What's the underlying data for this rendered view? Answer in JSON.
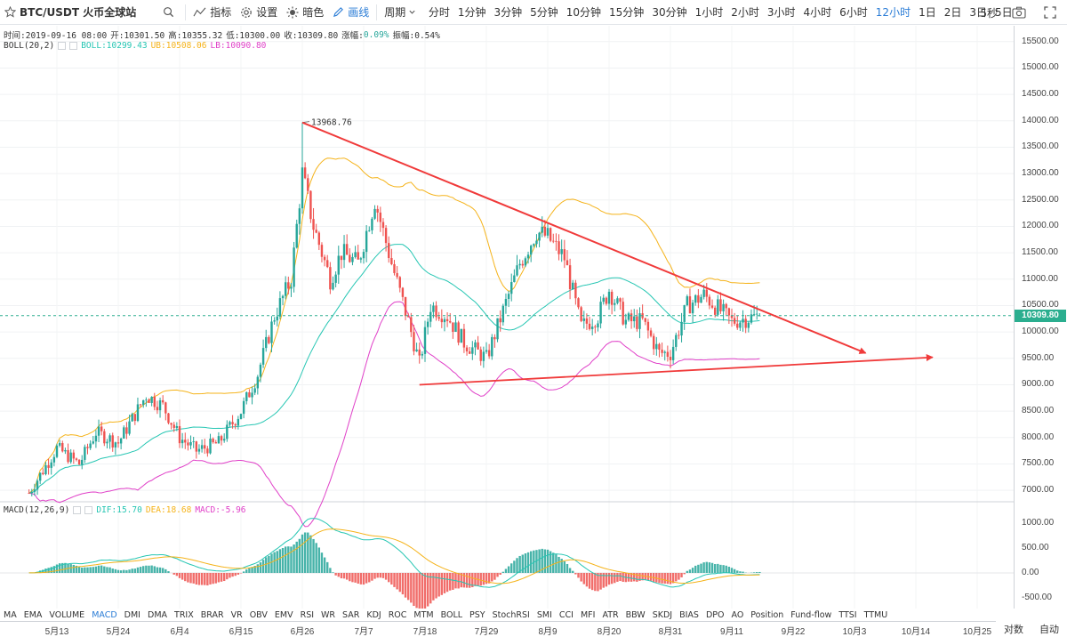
{
  "toolbar": {
    "symbol": "BTC/USDT 火币全球站",
    "indicators_label": "指标",
    "settings_label": "设置",
    "theme_label": "暗色",
    "draw_label": "画线",
    "period_label": "周期",
    "intervals": [
      "分时",
      "1分钟",
      "3分钟",
      "5分钟",
      "10分钟",
      "15分钟",
      "30分钟",
      "1小时",
      "2小时",
      "3小时",
      "4小时",
      "6小时",
      "12小时",
      "1日",
      "2日",
      "3日",
      "5日"
    ],
    "active_interval": "12小时",
    "refresh_label": "5秒",
    "accent_color": "#2a7cd6"
  },
  "legend": {
    "ohlc": {
      "time": "时间:2019-09-16 08:00",
      "open": "开:10301.50",
      "high": "高:10355.32",
      "low": "低:10300.00",
      "close": "收:10309.80",
      "change": "涨幅:",
      "change_value": "0.09%",
      "amplitude": "振幅:0.54%"
    },
    "boll": {
      "name": "BOLL(20,2)",
      "mid": "BOLL:10299.43",
      "ub": "UB:10508.06",
      "lb": "LB:10090.80"
    },
    "macd": {
      "name": "MACD(12,26,9)",
      "dif": "DIF:15.70",
      "dea": "DEA:18.68",
      "macd": "MACD:-5.96"
    }
  },
  "colors": {
    "up": "#26a69a",
    "down": "#ef5350",
    "boll_mid": "#26c6b3",
    "boll_ub": "#f5b31a",
    "boll_lb": "#e040c8",
    "trend": "#f03a3a",
    "current_price": "#2bae8f"
  },
  "price_axis": {
    "ticks": [
      "15500.00",
      "15000.00",
      "14500.00",
      "14000.00",
      "13500.00",
      "13000.00",
      "12500.00",
      "12000.00",
      "11500.00",
      "11000.00",
      "10500.00",
      "10000.00",
      "9500.00",
      "9000.00",
      "8500.00",
      "8000.00",
      "7500.00",
      "7000.00"
    ],
    "current": "10309.80"
  },
  "macd_axis": {
    "ticks": [
      "1000.00",
      "500.00",
      "0.00",
      "-500.00"
    ]
  },
  "chart_data": {
    "type": "candlestick",
    "symbol": "BTC/USDT",
    "interval": "12h",
    "high_annotation": "13968.76",
    "high_value": 13968.76,
    "current_price": 10309.8,
    "ylim": [
      6800,
      15800
    ],
    "x_ticks": [
      "5月13",
      "5月24",
      "6月4",
      "6月15",
      "6月26",
      "7月7",
      "7月18",
      "7月29",
      "8月9",
      "8月20",
      "8月31",
      "9月11",
      "9月22",
      "10月3",
      "10月14",
      "10月25"
    ],
    "close_path": [
      {
        "x": "5月8",
        "y": 6950
      },
      {
        "x": "5月13",
        "y": 7800
      },
      {
        "x": "5月17",
        "y": 7500
      },
      {
        "x": "5月20",
        "y": 8100
      },
      {
        "x": "5月24",
        "y": 7900
      },
      {
        "x": "5月29",
        "y": 8800
      },
      {
        "x": "6月1",
        "y": 8600
      },
      {
        "x": "6月4",
        "y": 8000
      },
      {
        "x": "6月7",
        "y": 7750
      },
      {
        "x": "6月11",
        "y": 7900
      },
      {
        "x": "6月15",
        "y": 8500
      },
      {
        "x": "6月18",
        "y": 9200
      },
      {
        "x": "6月21",
        "y": 10300
      },
      {
        "x": "6月24",
        "y": 11000
      },
      {
        "x": "6月26",
        "y": 13000
      },
      {
        "x": "6月28",
        "y": 12000
      },
      {
        "x": "7月1",
        "y": 11000
      },
      {
        "x": "7月3",
        "y": 11500
      },
      {
        "x": "7月6",
        "y": 11300
      },
      {
        "x": "7月9",
        "y": 12500
      },
      {
        "x": "7月12",
        "y": 11300
      },
      {
        "x": "7月15",
        "y": 10200
      },
      {
        "x": "7月17",
        "y": 9400
      },
      {
        "x": "7月19",
        "y": 10500
      },
      {
        "x": "7月22",
        "y": 10300
      },
      {
        "x": "7月25",
        "y": 9800
      },
      {
        "x": "7月29",
        "y": 9500
      },
      {
        "x": "8月1",
        "y": 10400
      },
      {
        "x": "8月4",
        "y": 11300
      },
      {
        "x": "8月7",
        "y": 11900
      },
      {
        "x": "8月9",
        "y": 11800
      },
      {
        "x": "8月12",
        "y": 11400
      },
      {
        "x": "8月15",
        "y": 10100
      },
      {
        "x": "8月18",
        "y": 10300
      },
      {
        "x": "8月20",
        "y": 10800
      },
      {
        "x": "8月23",
        "y": 10200
      },
      {
        "x": "8月26",
        "y": 10200
      },
      {
        "x": "8月29",
        "y": 9600
      },
      {
        "x": "8月31",
        "y": 9600
      },
      {
        "x": "9月3",
        "y": 10500
      },
      {
        "x": "9月6",
        "y": 10700
      },
      {
        "x": "9月8",
        "y": 10500
      },
      {
        "x": "9月11",
        "y": 10200
      },
      {
        "x": "9月16",
        "y": 10309.8
      }
    ],
    "trendlines": [
      {
        "from": {
          "x": "6月26",
          "y": 13968.76
        },
        "to": {
          "x": "10月5",
          "y": 9600
        }
      },
      {
        "from": {
          "x": "7月17",
          "y": 9000
        },
        "to": {
          "x": "10月17",
          "y": 9520
        }
      }
    ],
    "macd": {
      "ylim": [
        -700,
        1200
      ],
      "dif": 15.7,
      "dea": 18.68,
      "hist": -5.96
    }
  },
  "indicators": [
    "MA",
    "EMA",
    "VOLUME",
    "MACD",
    "DMI",
    "DMA",
    "TRIX",
    "BRAR",
    "VR",
    "OBV",
    "EMV",
    "RSI",
    "WR",
    "SAR",
    "KDJ",
    "ROC",
    "MTM",
    "BOLL",
    "PSY",
    "StochRSI",
    "SMI",
    "CCI",
    "MFI",
    "ATR",
    "BBW",
    "SKDJ",
    "BIAS",
    "DPO",
    "AO",
    "Position",
    "Fund-flow",
    "TTSI",
    "TTMU"
  ],
  "active_indicator": "MACD",
  "axis_buttons": {
    "log": "对数",
    "auto": "自动"
  }
}
